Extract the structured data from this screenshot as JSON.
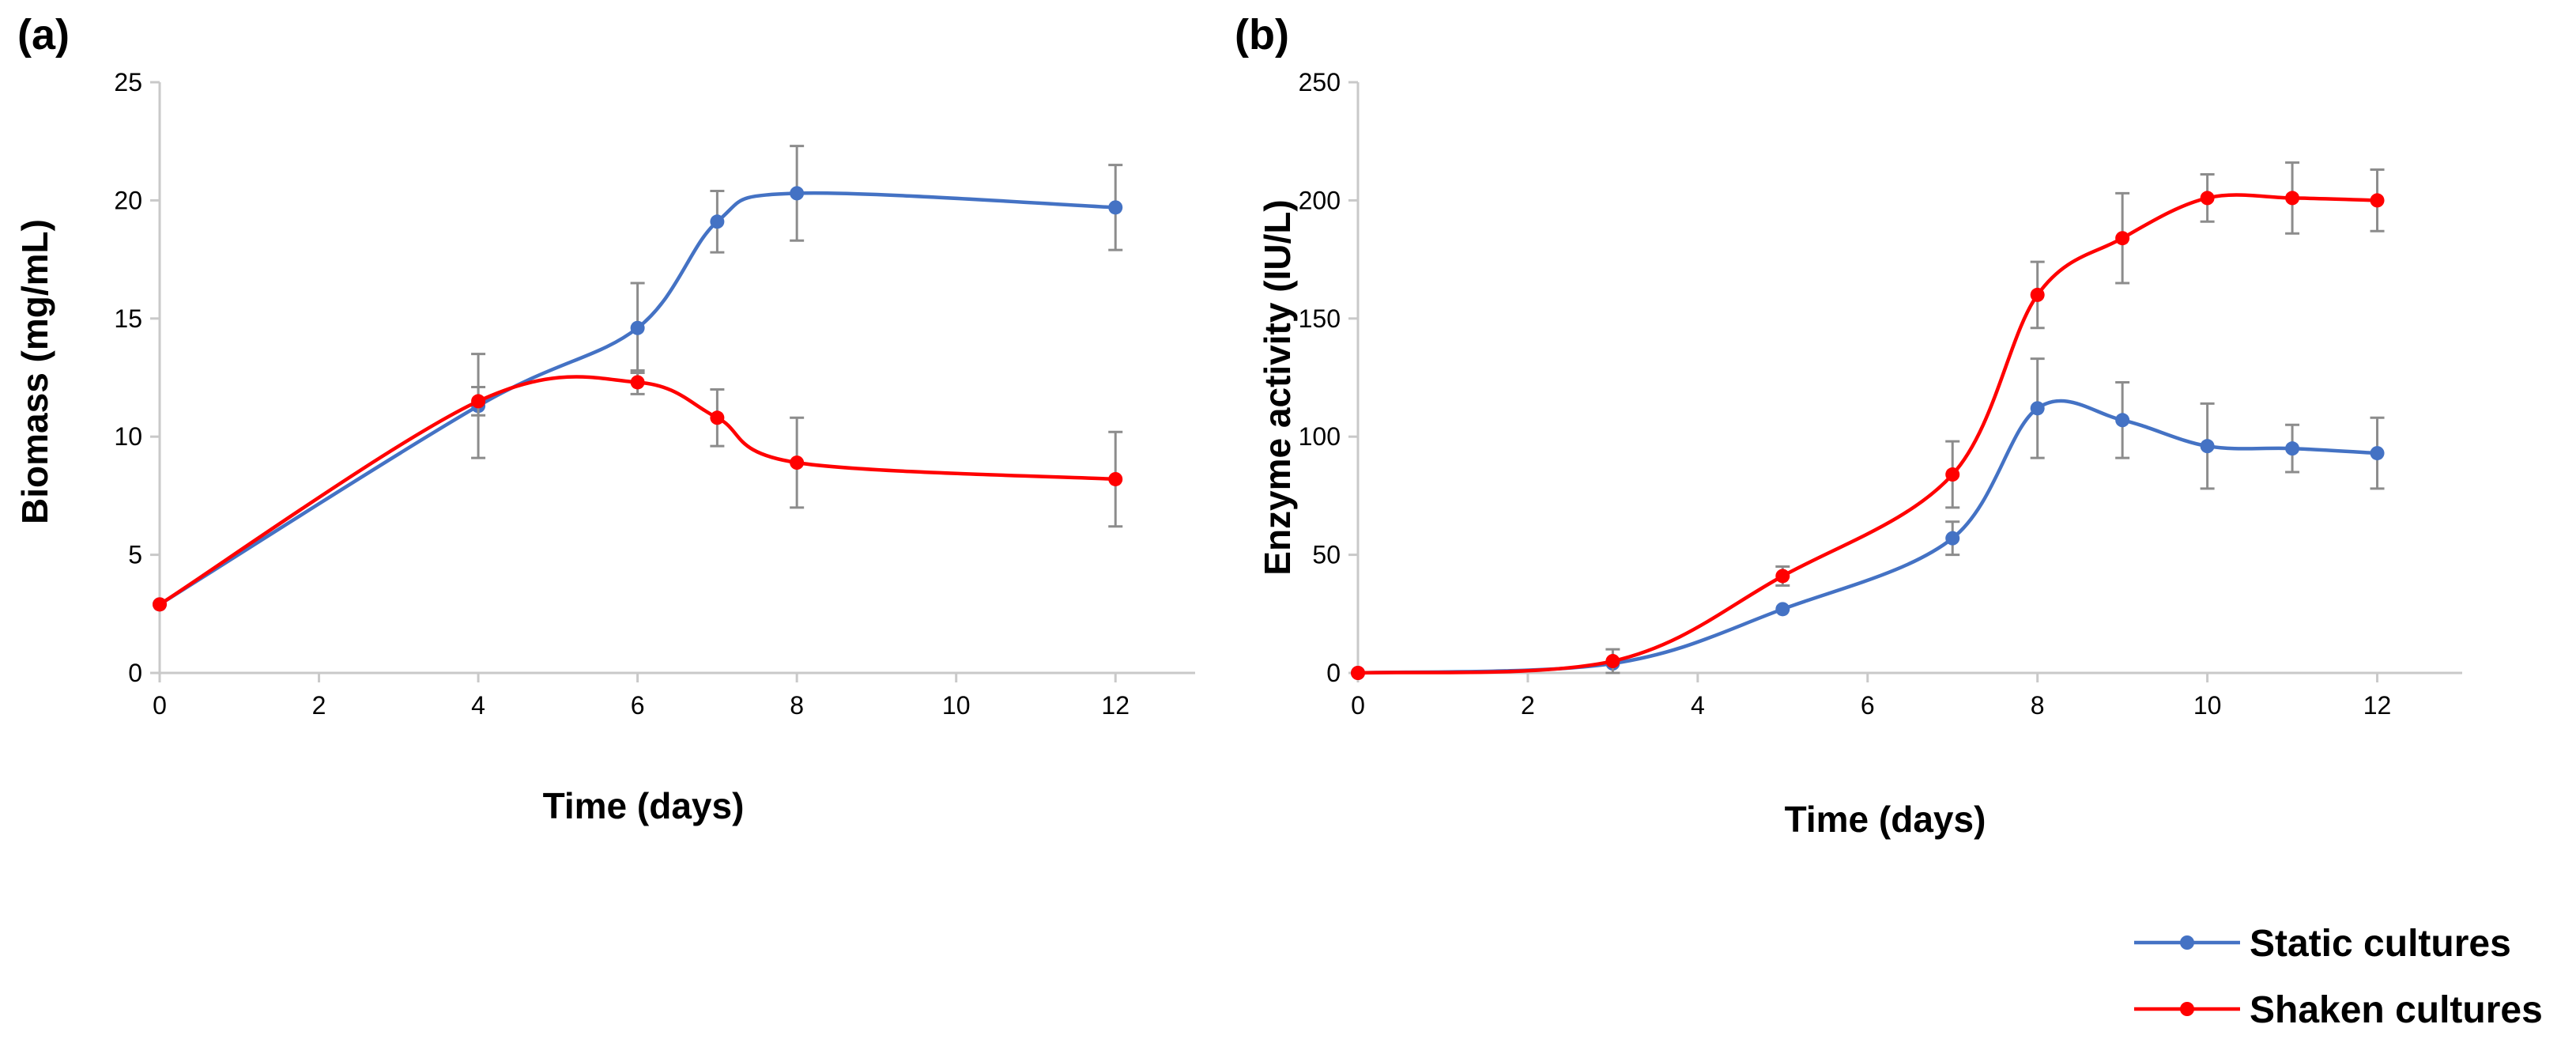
{
  "chart_data": [
    {
      "type": "line",
      "panel_label": "(a)",
      "xlabel": "Time (days)",
      "ylabel": "Biomass (mg/mL)",
      "xlim": [
        0,
        13
      ],
      "ylim": [
        0,
        25
      ],
      "xticks": [
        0,
        2,
        4,
        6,
        8,
        10,
        12
      ],
      "yticks": [
        0,
        5,
        10,
        15,
        20,
        25
      ],
      "grid": false,
      "smooth": true,
      "series": [
        {
          "name": "Static cultures",
          "color": "#4472C4",
          "points": [
            {
              "x": 0,
              "y": 2.9,
              "err": 0
            },
            {
              "x": 4,
              "y": 11.3,
              "err": 2.2
            },
            {
              "x": 6,
              "y": 14.6,
              "err": 1.9
            },
            {
              "x": 7,
              "y": 19.1,
              "err": 1.3
            },
            {
              "x": 8,
              "y": 20.3,
              "err": 2.0
            },
            {
              "x": 12,
              "y": 19.7,
              "err": 1.8
            }
          ]
        },
        {
          "name": "Shaken cultures",
          "color": "#FF0000",
          "points": [
            {
              "x": 0,
              "y": 2.9,
              "err": 0
            },
            {
              "x": 4,
              "y": 11.5,
              "err": 0.6
            },
            {
              "x": 6,
              "y": 12.3,
              "err": 0.5
            },
            {
              "x": 7,
              "y": 10.8,
              "err": 1.2
            },
            {
              "x": 8,
              "y": 8.9,
              "err": 1.9
            },
            {
              "x": 12,
              "y": 8.2,
              "err": 2.0
            }
          ]
        }
      ]
    },
    {
      "type": "line",
      "panel_label": "(b)",
      "xlabel": "Time (days)",
      "ylabel": "Enzyme activity (IU/L)",
      "xlim": [
        0,
        13
      ],
      "ylim": [
        0,
        250
      ],
      "xticks": [
        0,
        2,
        4,
        6,
        8,
        10,
        12
      ],
      "yticks": [
        0,
        50,
        100,
        150,
        200,
        250
      ],
      "grid": false,
      "smooth": true,
      "series": [
        {
          "name": "Static cultures",
          "color": "#4472C4",
          "points": [
            {
              "x": 0,
              "y": 0,
              "err": 0
            },
            {
              "x": 3,
              "y": 4,
              "err": 0
            },
            {
              "x": 5,
              "y": 27,
              "err": 0
            },
            {
              "x": 7,
              "y": 57,
              "err": 7
            },
            {
              "x": 8,
              "y": 112,
              "err": 21
            },
            {
              "x": 9,
              "y": 107,
              "err": 16
            },
            {
              "x": 10,
              "y": 96,
              "err": 18
            },
            {
              "x": 11,
              "y": 95,
              "err": 10
            },
            {
              "x": 12,
              "y": 93,
              "err": 15
            }
          ]
        },
        {
          "name": "Shaken cultures",
          "color": "#FF0000",
          "points": [
            {
              "x": 0,
              "y": 0,
              "err": 0
            },
            {
              "x": 3,
              "y": 5,
              "err": 5
            },
            {
              "x": 5,
              "y": 41,
              "err": 4
            },
            {
              "x": 7,
              "y": 84,
              "err": 14
            },
            {
              "x": 8,
              "y": 160,
              "err": 14
            },
            {
              "x": 9,
              "y": 184,
              "err": 19
            },
            {
              "x": 10,
              "y": 201,
              "err": 10
            },
            {
              "x": 11,
              "y": 201,
              "err": 15
            },
            {
              "x": 12,
              "y": 200,
              "err": 13
            }
          ]
        }
      ]
    }
  ],
  "legend": {
    "position": "bottom-right",
    "items": [
      {
        "label": "Static cultures",
        "color": "#4472C4"
      },
      {
        "label": "Shaken cultures",
        "color": "#FF0000"
      }
    ]
  }
}
